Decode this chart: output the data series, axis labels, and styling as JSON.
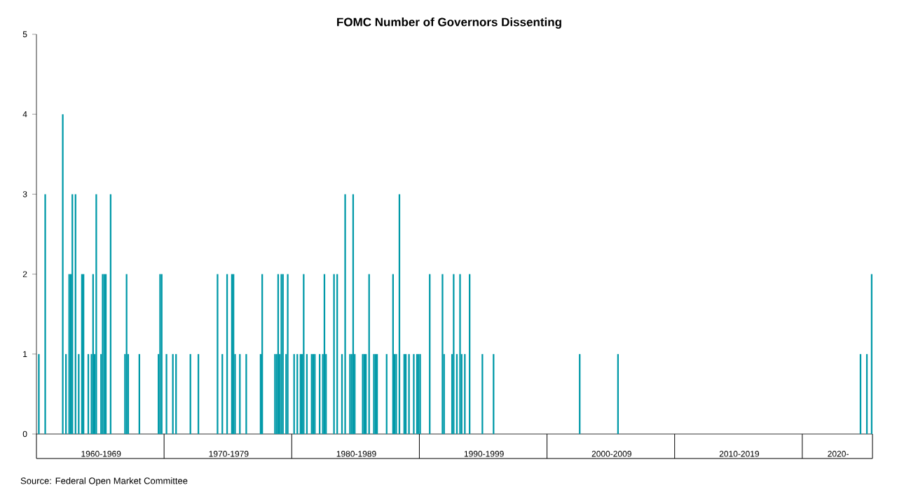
{
  "chart_data": {
    "type": "bar",
    "title": "FOMC Number of Governors Dissenting",
    "color": "#0099a8",
    "categories": [
      null,
      null,
      null,
      null,
      null,
      null,
      null,
      null,
      null,
      null,
      null,
      null,
      null,
      null,
      null,
      null,
      null,
      null,
      null,
      null,
      null,
      null,
      null,
      null,
      null,
      null,
      null,
      null,
      null,
      null,
      null,
      null,
      null,
      null,
      null,
      null,
      null,
      null,
      null,
      null,
      "1960-1969",
      null,
      null,
      null,
      null,
      null,
      null,
      null,
      null,
      null,
      null,
      null,
      null,
      null,
      null,
      null,
      null,
      null,
      null,
      null,
      null,
      null,
      null,
      null,
      null,
      null,
      null,
      null,
      null,
      null,
      null,
      null,
      null,
      null,
      null,
      null,
      null,
      null,
      null,
      null,
      null,
      null,
      null,
      null,
      null,
      null,
      null,
      null,
      null,
      null,
      null,
      null,
      null,
      null,
      null,
      null,
      null,
      null,
      null,
      null,
      null,
      null,
      null,
      null,
      null,
      null,
      null,
      null,
      null,
      null,
      null,
      null,
      null,
      null,
      null,
      null,
      null,
      null,
      null,
      null,
      "1970-1979",
      null,
      null,
      null,
      null,
      null,
      null,
      null,
      null,
      null,
      null,
      null,
      null,
      null,
      null,
      null,
      null,
      null,
      null,
      null,
      null,
      null,
      null,
      null,
      null,
      null,
      null,
      null,
      null,
      null,
      null,
      null,
      null,
      null,
      null,
      null,
      null,
      null,
      null,
      null,
      null,
      null,
      null,
      null,
      null,
      null,
      null,
      null,
      null,
      null,
      null,
      null,
      null,
      null,
      null,
      null,
      null,
      null,
      null,
      null,
      null,
      null,
      null,
      null,
      null,
      null,
      null,
      null,
      null,
      null,
      null,
      null,
      null,
      null,
      null,
      null,
      null,
      null,
      null,
      null,
      "1980-1989",
      null,
      null,
      null,
      null,
      null,
      null,
      null,
      null,
      null,
      null,
      null,
      null,
      null,
      null,
      null,
      null,
      null,
      null,
      null,
      null,
      null,
      null,
      null,
      null,
      null,
      null,
      null,
      null,
      null,
      null,
      null,
      null,
      null,
      null,
      null,
      null,
      null,
      null,
      null,
      null,
      null,
      null,
      null,
      null,
      null,
      null,
      null,
      null,
      null,
      null,
      null,
      null,
      null,
      null,
      null,
      null,
      null,
      null,
      null,
      null,
      null,
      null,
      null,
      null,
      null,
      null,
      null,
      null,
      null,
      null,
      null,
      null,
      null,
      null,
      null,
      null,
      null,
      null,
      null,
      "1990-1999",
      null,
      null,
      null,
      null,
      null,
      null,
      null,
      null,
      null,
      null,
      null,
      null,
      null,
      null,
      null,
      null,
      null,
      null,
      null,
      null,
      null,
      null,
      null,
      null,
      null,
      null,
      null,
      null,
      null,
      null,
      null,
      null,
      null,
      null,
      null,
      null,
      null,
      null,
      null,
      null,
      null,
      null,
      null,
      null,
      null,
      null,
      null,
      null,
      null,
      null,
      null,
      null,
      null,
      null,
      null,
      null,
      null,
      null,
      null,
      null,
      null,
      null,
      null,
      null,
      null,
      null,
      null,
      null,
      null,
      null,
      null,
      null,
      null,
      null,
      null,
      null,
      null,
      null,
      null,
      "2000-2009",
      null,
      null,
      null,
      null,
      null,
      null,
      null,
      null,
      null,
      null,
      null,
      null,
      null,
      null,
      null,
      null,
      null,
      null,
      null,
      null,
      null,
      null,
      null,
      null,
      null,
      null,
      null,
      null,
      null,
      null,
      null,
      null,
      null,
      null,
      null,
      null,
      null,
      null,
      null,
      null,
      null,
      null,
      null,
      null,
      null,
      null,
      null,
      null,
      null,
      null,
      null,
      null,
      null,
      null,
      null,
      null,
      null,
      null,
      null,
      null,
      null,
      null,
      null,
      null,
      null,
      null,
      null,
      null,
      null,
      null,
      null,
      null,
      null,
      null,
      null,
      null,
      null,
      null,
      null,
      "2010-2019",
      null,
      null,
      null,
      null,
      null,
      null,
      null,
      null,
      null,
      null,
      null,
      null,
      null,
      null,
      null,
      null,
      null,
      null,
      null,
      null,
      null,
      null,
      null,
      null,
      null,
      null,
      null,
      null,
      null,
      null,
      null,
      null,
      null,
      null,
      null,
      null,
      null,
      null,
      null,
      null,
      null,
      null,
      null,
      null,
      null,
      null,
      null,
      null,
      null,
      null,
      null,
      null,
      null,
      null,
      null,
      null,
      null,
      null,
      null,
      null,
      null,
      "2020-",
      null,
      null,
      null,
      null,
      null,
      null,
      null,
      null,
      null,
      null,
      null,
      null,
      null,
      null,
      null,
      null,
      null,
      null,
      null,
      null,
      null
    ],
    "values": [
      null,
      1,
      null,
      null,
      null,
      3,
      null,
      null,
      null,
      null,
      null,
      null,
      null,
      null,
      null,
      null,
      4,
      null,
      1,
      null,
      2,
      2,
      3,
      null,
      3,
      null,
      1,
      null,
      2,
      2,
      null,
      null,
      1,
      null,
      1,
      2,
      1,
      3,
      null,
      null,
      1,
      2,
      2,
      2,
      null,
      null,
      3,
      null,
      null,
      null,
      null,
      null,
      null,
      null,
      null,
      1,
      2,
      1,
      null,
      null,
      null,
      null,
      null,
      null,
      1,
      null,
      null,
      null,
      null,
      null,
      null,
      null,
      null,
      null,
      null,
      null,
      1,
      2,
      2,
      null,
      null,
      1,
      null,
      null,
      null,
      1,
      null,
      1,
      null,
      null,
      null,
      null,
      null,
      null,
      null,
      null,
      1,
      null,
      null,
      null,
      null,
      1,
      null,
      null,
      null,
      null,
      null,
      null,
      null,
      null,
      null,
      null,
      null,
      2,
      null,
      null,
      1,
      null,
      null,
      2,
      null,
      null,
      2,
      2,
      1,
      null,
      null,
      1,
      null,
      null,
      null,
      1,
      null,
      null,
      null,
      null,
      null,
      null,
      null,
      null,
      1,
      2,
      null,
      null,
      null,
      null,
      null,
      null,
      null,
      1,
      1,
      2,
      1,
      2,
      2,
      null,
      1,
      2,
      null,
      null,
      null,
      1,
      null,
      1,
      null,
      1,
      1,
      2,
      null,
      1,
      null,
      null,
      1,
      1,
      1,
      null,
      null,
      1,
      null,
      1,
      2,
      1,
      null,
      null,
      null,
      null,
      2,
      null,
      2,
      null,
      null,
      1,
      null,
      3,
      null,
      null,
      1,
      1,
      3,
      1,
      null,
      null,
      null,
      null,
      1,
      1,
      1,
      null,
      2,
      null,
      null,
      1,
      1,
      1,
      null,
      null,
      null,
      null,
      null,
      1,
      null,
      null,
      null,
      2,
      1,
      1,
      null,
      3,
      null,
      null,
      1,
      1,
      null,
      1,
      null,
      null,
      1,
      null,
      1,
      1,
      1,
      null,
      null,
      null,
      null,
      null,
      2,
      null,
      null,
      null,
      null,
      null,
      null,
      null,
      2,
      1,
      null,
      null,
      null,
      null,
      1,
      2,
      null,
      1,
      null,
      2,
      1,
      null,
      1,
      null,
      null,
      2,
      null,
      null,
      null,
      null,
      null,
      null,
      null,
      1,
      null,
      null,
      null,
      null,
      null,
      null,
      1,
      null,
      null,
      null,
      null,
      null,
      null,
      null,
      null,
      null,
      null,
      null,
      null,
      null,
      null,
      null,
      null,
      null,
      null,
      null,
      null,
      null,
      null,
      null,
      null,
      null,
      null,
      null,
      null,
      null,
      null,
      null,
      null,
      null,
      null,
      null,
      null,
      null,
      null,
      null,
      null,
      null,
      null,
      null,
      null,
      null,
      null,
      null,
      null,
      null,
      null,
      null,
      null,
      null,
      1,
      null,
      null,
      null,
      null,
      null,
      null,
      null,
      null,
      null,
      null,
      null,
      null,
      null,
      null,
      null,
      null,
      null,
      null,
      null,
      null,
      null,
      null,
      null,
      1,
      null,
      null,
      null,
      null,
      null,
      null,
      null,
      null,
      null,
      null,
      null,
      null,
      null,
      null,
      null,
      null,
      null,
      null,
      null,
      null,
      null,
      null,
      null,
      null,
      null,
      null,
      null,
      null,
      null,
      null,
      null,
      null,
      null,
      null,
      null,
      null,
      null,
      null,
      null,
      null,
      null,
      null,
      null,
      null,
      null,
      null,
      null,
      null,
      null,
      null,
      null,
      null,
      null,
      null,
      null,
      null,
      null,
      null,
      null,
      null,
      null,
      null,
      null,
      null,
      null,
      null,
      null,
      null,
      null,
      null,
      null,
      null,
      null,
      null,
      null,
      null,
      null,
      null,
      null,
      null,
      null,
      null,
      null,
      null,
      null,
      null,
      null,
      null,
      null,
      null,
      null,
      null,
      null,
      null,
      null,
      null,
      null,
      null,
      null,
      null,
      null,
      null,
      null,
      null,
      null,
      null,
      null,
      null,
      null,
      null,
      null,
      null,
      null,
      null,
      null,
      null,
      null,
      null,
      null,
      null,
      null,
      null,
      null,
      null,
      null,
      null,
      null,
      null,
      null,
      null,
      null,
      null,
      null,
      null,
      null,
      null,
      null,
      null,
      null,
      null,
      null,
      null,
      null,
      null,
      null,
      null,
      null,
      null,
      null,
      null,
      null,
      1,
      null,
      null,
      null,
      1,
      null,
      null,
      2
    ],
    "ylim": [
      0,
      5
    ],
    "yticks": [
      0,
      1,
      2,
      3,
      4,
      5
    ],
    "annotations": [
      "Source: Federal Open Market Committee"
    ]
  }
}
